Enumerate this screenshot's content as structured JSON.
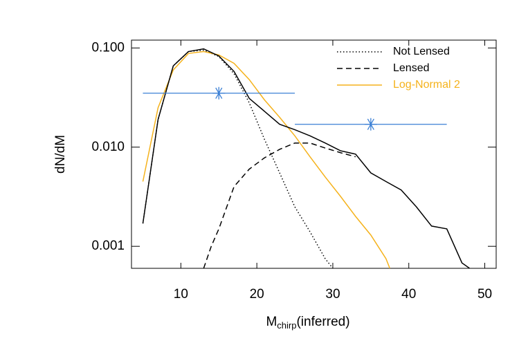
{
  "chart_data": {
    "type": "line",
    "xlabel": {
      "main": "M",
      "sub": "chirp",
      "rest": "(inferred)"
    },
    "ylabel": "dN/dM",
    "xlim": [
      3.5,
      51.5
    ],
    "ylim": [
      0.0006,
      0.12
    ],
    "log_y": true,
    "xticks": [
      10,
      20,
      30,
      40,
      50
    ],
    "yticks": [
      {
        "value": 0.1,
        "label": "0.100"
      },
      {
        "value": 0.01,
        "label": "0.010"
      },
      {
        "value": 0.001,
        "label": "0.001"
      }
    ],
    "legend": "upper right",
    "series": [
      {
        "name": "Not Lensed",
        "color": "#000000",
        "dash": "dotted",
        "x": [
          5,
          7,
          9,
          11,
          13,
          15,
          17,
          19,
          21,
          23,
          25,
          27,
          29,
          30
        ],
        "values": [
          0.0017,
          0.019,
          0.066,
          0.092,
          0.095,
          0.082,
          0.055,
          0.028,
          0.012,
          0.0055,
          0.0025,
          0.0014,
          0.00075,
          0.0006
        ]
      },
      {
        "name": "Lensed",
        "color": "#000000",
        "dash": "dashed",
        "x": [
          13,
          14,
          15,
          17,
          19,
          21,
          23,
          25,
          27,
          29,
          31,
          33
        ],
        "values": [
          0.0006,
          0.001,
          0.0015,
          0.004,
          0.006,
          0.0078,
          0.0095,
          0.011,
          0.011,
          0.0098,
          0.0088,
          0.008
        ]
      },
      {
        "name": "Log-Normal 2",
        "color": "#f5b21b",
        "dash": "solid",
        "x": [
          5,
          7,
          9,
          11,
          13,
          15,
          17,
          19,
          21,
          23,
          25,
          27,
          29,
          31,
          33,
          35,
          37,
          37.5
        ],
        "values": [
          0.0045,
          0.025,
          0.06,
          0.088,
          0.092,
          0.085,
          0.07,
          0.048,
          0.03,
          0.02,
          0.013,
          0.008,
          0.005,
          0.0032,
          0.002,
          0.0013,
          0.00075,
          0.0006
        ]
      },
      {
        "color": "#000000",
        "dash": "solid",
        "x": [
          5,
          7,
          9,
          11,
          13,
          15,
          17,
          19,
          21,
          23,
          25,
          27,
          29,
          31,
          33,
          35,
          37,
          39,
          41,
          43,
          45,
          47,
          48
        ],
        "values": [
          0.0017,
          0.019,
          0.066,
          0.092,
          0.098,
          0.083,
          0.058,
          0.031,
          0.023,
          0.017,
          0.015,
          0.013,
          0.011,
          0.0092,
          0.0085,
          0.0055,
          0.0045,
          0.0037,
          0.0025,
          0.0016,
          0.0015,
          0.00068,
          0.0006
        ]
      }
    ],
    "points": {
      "color": "#3a7fd5",
      "x": [
        15,
        35
      ],
      "values": [
        0.035,
        0.017
      ],
      "xerr": [
        10,
        10
      ]
    }
  }
}
